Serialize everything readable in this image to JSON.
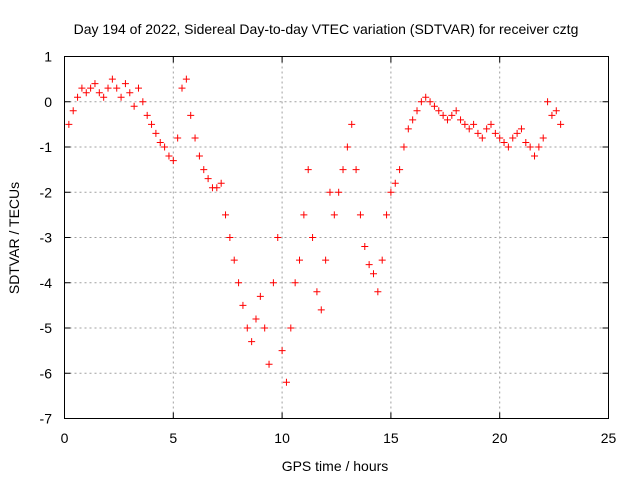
{
  "chart_data": {
    "type": "scatter",
    "title": "Day 194 of 2022, Sidereal Day-to-day VTEC variation (SDTVAR) for receiver cztg",
    "xlabel": "GPS time / hours",
    "ylabel": "SDTVAR / TECUs",
    "xlim": [
      0,
      25
    ],
    "ylim": [
      -7,
      1
    ],
    "xticks": [
      0,
      5,
      10,
      15,
      20,
      25
    ],
    "yticks": [
      1,
      0,
      -1,
      -2,
      -3,
      -4,
      -5,
      -6,
      -7
    ],
    "xtick_labels": [
      "0",
      "5",
      "10",
      "15",
      "20",
      "25"
    ],
    "ytick_labels": [
      "1",
      "0",
      "-1",
      "-2",
      "-3",
      "-4",
      "-5",
      "-6",
      "-7"
    ],
    "grid": true,
    "marker": "+",
    "color": "#ff0000",
    "series": [
      {
        "name": "SDTVAR",
        "x": [
          0.2,
          0.4,
          0.6,
          0.8,
          1.0,
          1.2,
          1.4,
          1.6,
          1.8,
          2.0,
          2.2,
          2.4,
          2.6,
          2.8,
          3.0,
          3.2,
          3.4,
          3.6,
          3.8,
          4.0,
          4.2,
          4.4,
          4.6,
          4.8,
          5.0,
          5.2,
          5.4,
          5.6,
          5.8,
          6.0,
          6.2,
          6.4,
          6.6,
          6.8,
          7.0,
          7.2,
          7.4,
          7.6,
          7.8,
          8.0,
          8.2,
          8.4,
          8.6,
          8.8,
          9.0,
          9.2,
          9.4,
          9.6,
          9.8,
          10.0,
          10.2,
          10.4,
          10.6,
          10.8,
          11.0,
          11.2,
          11.4,
          11.6,
          11.8,
          12.0,
          12.2,
          12.4,
          12.6,
          12.8,
          13.0,
          13.2,
          13.4,
          13.6,
          13.8,
          14.0,
          14.2,
          14.4,
          14.6,
          14.8,
          15.0,
          15.2,
          15.4,
          15.6,
          15.8,
          16.0,
          16.2,
          16.4,
          16.6,
          16.8,
          17.0,
          17.2,
          17.4,
          17.6,
          17.8,
          18.0,
          18.2,
          18.4,
          18.6,
          18.8,
          19.0,
          19.2,
          19.4,
          19.6,
          19.8,
          20.0,
          20.2,
          20.4,
          20.6,
          20.8,
          21.0,
          21.2,
          21.4,
          21.6,
          21.8,
          22.0,
          22.2,
          22.4,
          22.6,
          22.8
        ],
        "y": [
          -0.5,
          -0.2,
          0.1,
          0.3,
          0.2,
          0.3,
          0.4,
          0.2,
          0.1,
          0.3,
          0.5,
          0.3,
          0.1,
          0.4,
          0.2,
          -0.1,
          0.3,
          0.0,
          -0.3,
          -0.5,
          -0.7,
          -0.9,
          -1.0,
          -1.2,
          -1.3,
          -0.8,
          0.3,
          0.5,
          -0.3,
          -0.8,
          -1.2,
          -1.5,
          -1.7,
          -1.9,
          -1.9,
          -1.8,
          -2.5,
          -3.0,
          -3.5,
          -4.0,
          -4.5,
          -5.0,
          -5.3,
          -4.8,
          -4.3,
          -5.0,
          -5.8,
          -4.0,
          -3.0,
          -5.5,
          -6.2,
          -5.0,
          -4.0,
          -3.5,
          -2.5,
          -1.5,
          -3.0,
          -4.2,
          -4.6,
          -3.5,
          -2.0,
          -2.5,
          -2.0,
          -1.5,
          -1.0,
          -0.5,
          -1.5,
          -2.5,
          -3.2,
          -3.6,
          -3.8,
          -4.2,
          -3.5,
          -2.5,
          -2.0,
          -1.8,
          -1.5,
          -1.0,
          -0.6,
          -0.4,
          -0.2,
          0.0,
          0.1,
          0.0,
          -0.1,
          -0.2,
          -0.3,
          -0.4,
          -0.3,
          -0.2,
          -0.4,
          -0.5,
          -0.6,
          -0.5,
          -0.7,
          -0.8,
          -0.6,
          -0.5,
          -0.7,
          -0.8,
          -0.9,
          -1.0,
          -0.8,
          -0.7,
          -0.6,
          -0.9,
          -1.0,
          -1.2,
          -1.0,
          -0.8,
          0.0,
          -0.3,
          -0.2,
          -0.5
        ]
      }
    ]
  }
}
